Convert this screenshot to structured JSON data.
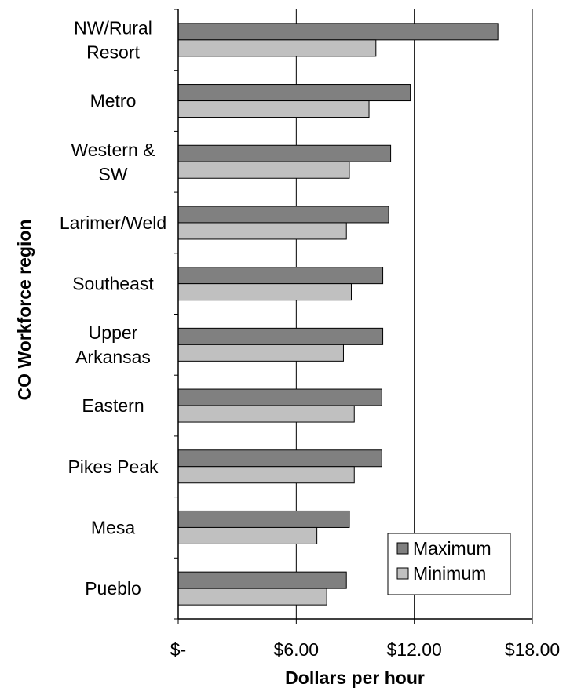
{
  "chart_data": {
    "type": "bar",
    "orientation": "horizontal",
    "categories": [
      [
        "NW/Rural",
        "Resort"
      ],
      [
        "Metro"
      ],
      [
        "Western &",
        "SW"
      ],
      [
        "Larimer/Weld"
      ],
      [
        "Southeast"
      ],
      [
        "Upper",
        "Arkansas"
      ],
      [
        "Eastern"
      ],
      [
        "Pikes Peak"
      ],
      [
        "Mesa"
      ],
      [
        "Pueblo"
      ]
    ],
    "series": [
      {
        "name": "Maximum",
        "color": "#808080",
        "values": [
          16.25,
          11.8,
          10.8,
          10.7,
          10.4,
          10.4,
          10.35,
          10.35,
          8.7,
          8.55
        ]
      },
      {
        "name": "Minimum",
        "color": "#c0c0c0",
        "values": [
          10.05,
          9.7,
          8.7,
          8.55,
          8.8,
          8.4,
          8.95,
          8.95,
          7.05,
          7.55
        ]
      }
    ],
    "xlabel": "Dollars per hour",
    "ylabel": "CO Workforce region",
    "xlim": [
      0,
      18
    ],
    "xticks": [
      0,
      6,
      12,
      18
    ],
    "xtick_labels": [
      "$-",
      "$6.00",
      "$12.00",
      "$18.00"
    ],
    "grid": "vertical major gridlines",
    "legend_position": "bottom-right"
  }
}
